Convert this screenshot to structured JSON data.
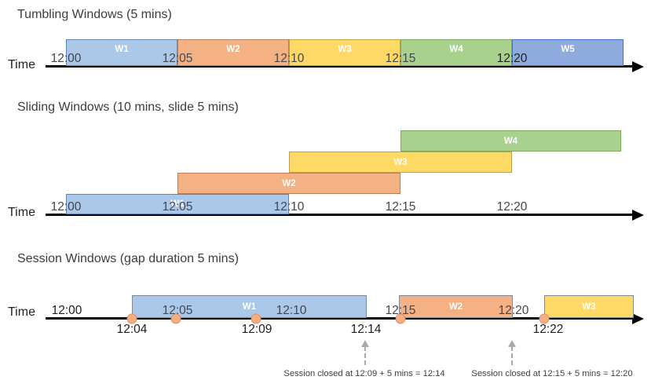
{
  "diagram": {
    "sections": {
      "tumbling": {
        "title": "Tumbling Windows (5 mins)",
        "time_axis_label": "Time",
        "ticks": [
          "12:00",
          "12:05",
          "12:10",
          "12:15",
          "12:20"
        ],
        "windows": [
          {
            "label": "W1",
            "start": "12:00",
            "end": "12:05",
            "color": "blue"
          },
          {
            "label": "W2",
            "start": "12:05",
            "end": "12:10",
            "color": "orange"
          },
          {
            "label": "W3",
            "start": "12:10",
            "end": "12:15",
            "color": "yellow"
          },
          {
            "label": "W4",
            "start": "12:15",
            "end": "12:20",
            "color": "green"
          },
          {
            "label": "W5",
            "start": "12:20",
            "end": "",
            "color": "blue_dark"
          }
        ]
      },
      "sliding": {
        "title": "Sliding Windows (10 mins, slide 5 mins)",
        "time_axis_label": "Time",
        "ticks": [
          "12:00",
          "12:05",
          "12:10",
          "12:15",
          "12:20"
        ],
        "windows": [
          {
            "label": "W1",
            "start": "12:00",
            "end": "12:10",
            "color": "blue"
          },
          {
            "label": "W2",
            "start": "12:05",
            "end": "12:15",
            "color": "orange"
          },
          {
            "label": "W3",
            "start": "12:10",
            "end": "12:20",
            "color": "yellow"
          },
          {
            "label": "W4",
            "start": "12:15",
            "end": "",
            "color": "green"
          }
        ]
      },
      "session": {
        "title": "Session Windows (gap duration 5 mins)",
        "time_axis_label": "Time",
        "ticks": [
          "12:00",
          "12:05",
          "12:10",
          "12:15",
          "12:20"
        ],
        "windows": [
          {
            "label": "W1",
            "start": "12:04",
            "end": "12:14",
            "color": "blue"
          },
          {
            "label": "W2",
            "start": "12:15",
            "end": "12:20",
            "color": "orange"
          },
          {
            "label": "W3",
            "start": "12:22",
            "end": "",
            "color": "yellow"
          }
        ],
        "event_marker_count": 5,
        "event_labels": [
          "12:04",
          "12:09",
          "12:14",
          "12:22"
        ],
        "annotations": [
          "Session closed at 12:09 + 5 mins = 12:14",
          "Session closed at 12:15 + 5 mins = 12:20"
        ]
      }
    },
    "colors": {
      "blue": "#ABC8E8",
      "orange": "#F4B183",
      "yellow": "#FFD966",
      "green": "#A9D18E",
      "blue_dark": "#8FAADC",
      "event_dot": "#F3AE84",
      "axis": "#000000",
      "annotation_arrow": "#a9a9a9"
    }
  }
}
